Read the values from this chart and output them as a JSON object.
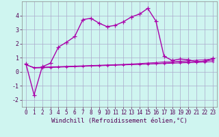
{
  "xlabel": "Windchill (Refroidissement éolien,°C)",
  "bg_color": "#cff5f0",
  "grid_color": "#aaaacc",
  "line_color": "#aa00aa",
  "xlim": [
    -0.5,
    23.5
  ],
  "ylim": [
    -2.5,
    5.0
  ],
  "yticks": [
    -2,
    -1,
    0,
    1,
    2,
    3,
    4
  ],
  "xticks": [
    0,
    1,
    2,
    3,
    4,
    5,
    6,
    7,
    8,
    9,
    10,
    11,
    12,
    13,
    14,
    15,
    16,
    17,
    18,
    19,
    20,
    21,
    22,
    23
  ],
  "line1_x": [
    0,
    1,
    2,
    3,
    4,
    5,
    6,
    7,
    8,
    9,
    10,
    11,
    12,
    13,
    14,
    15,
    16,
    17,
    18,
    19,
    20,
    21,
    22,
    23
  ],
  "line1_y": [
    0.55,
    -1.65,
    0.35,
    0.6,
    1.75,
    2.1,
    2.5,
    3.7,
    3.8,
    3.45,
    3.2,
    3.3,
    3.55,
    3.9,
    4.1,
    4.5,
    3.6,
    1.1,
    0.8,
    0.9,
    0.85,
    0.7,
    0.75,
    0.95
  ],
  "line2_x": [
    0,
    1,
    2,
    3,
    4,
    5,
    6,
    7,
    8,
    9,
    10,
    11,
    12,
    13,
    14,
    15,
    16,
    17,
    18,
    19,
    20,
    21,
    22,
    23
  ],
  "line2_y": [
    0.5,
    0.3,
    0.32,
    0.34,
    0.36,
    0.38,
    0.4,
    0.42,
    0.44,
    0.46,
    0.48,
    0.5,
    0.52,
    0.55,
    0.58,
    0.62,
    0.65,
    0.7,
    0.72,
    0.75,
    0.78,
    0.82,
    0.85,
    0.9
  ],
  "line3_x": [
    0,
    1,
    2,
    3,
    4,
    5,
    6,
    7,
    8,
    9,
    10,
    11,
    12,
    13,
    14,
    15,
    16,
    17,
    18,
    19,
    20,
    21,
    22,
    23
  ],
  "line3_y": [
    0.5,
    0.28,
    0.3,
    0.32,
    0.34,
    0.36,
    0.38,
    0.4,
    0.42,
    0.44,
    0.46,
    0.48,
    0.5,
    0.52,
    0.54,
    0.56,
    0.58,
    0.62,
    0.65,
    0.68,
    0.7,
    0.72,
    0.75,
    0.82
  ],
  "line4_x": [
    0,
    1,
    2,
    3,
    4,
    5,
    6,
    7,
    8,
    9,
    10,
    11,
    12,
    13,
    14,
    15,
    16,
    17,
    18,
    19,
    20,
    21,
    22,
    23
  ],
  "line4_y": [
    0.5,
    0.26,
    0.28,
    0.3,
    0.32,
    0.34,
    0.36,
    0.38,
    0.4,
    0.42,
    0.44,
    0.46,
    0.48,
    0.5,
    0.52,
    0.54,
    0.56,
    0.58,
    0.6,
    0.62,
    0.64,
    0.66,
    0.68,
    0.72
  ],
  "xlabel_fontsize": 6.5,
  "tick_fontsize": 5.5
}
